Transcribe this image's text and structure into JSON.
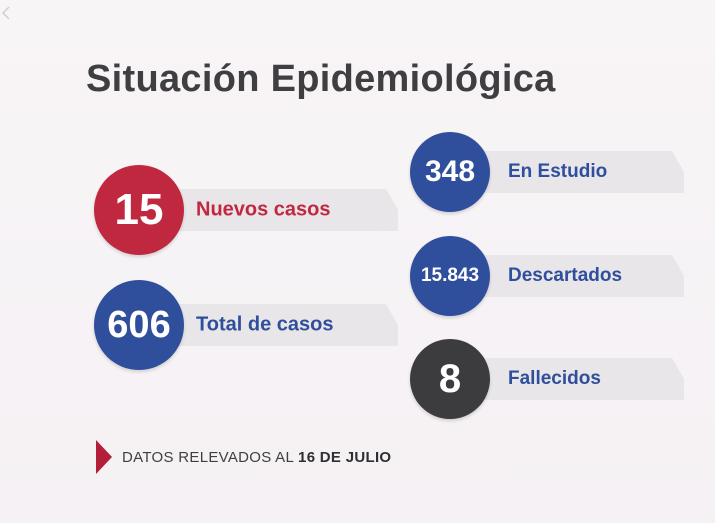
{
  "title": "Situación Epidemiológica",
  "colors": {
    "red": "#c02840",
    "blue": "#2f4f9c",
    "dark": "#3c3c3f",
    "text": "#3f3f42"
  },
  "stats": {
    "new_cases": {
      "value": "15",
      "label": "Nuevos casos"
    },
    "total_cases": {
      "value": "606",
      "label": "Total de casos"
    },
    "in_study": {
      "value": "348",
      "label": "En Estudio"
    },
    "discarded": {
      "value": "15.843",
      "label": "Descartados"
    },
    "deaths": {
      "value": "8",
      "label": "Fallecidos"
    }
  },
  "footer": {
    "prefix": "DATOS RELEVADOS AL",
    "date": "16 DE JULIO"
  }
}
